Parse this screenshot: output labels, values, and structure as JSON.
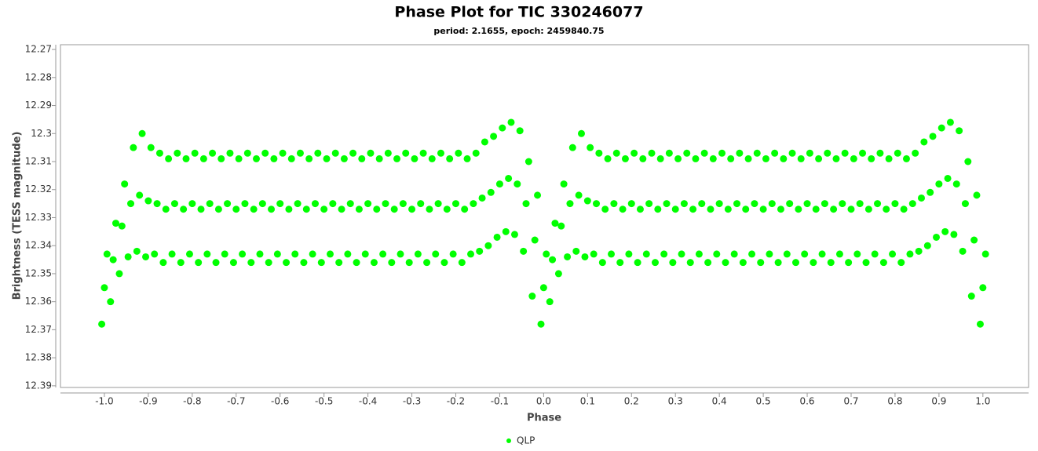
{
  "chart_data": {
    "type": "scatter",
    "title": "Phase Plot for TIC 330246077",
    "subtitle": "period: 2.1655, epoch: 2459840.75",
    "x_label": "Phase",
    "y_label": "Brightness (TESS magnitude)",
    "xlim": [
      -1.1,
      1.104
    ],
    "ylim": [
      12.3906,
      12.2683
    ],
    "xticks": [
      {
        "value": -1.0,
        "label": "-1.0"
      },
      -0.9,
      -0.8,
      -0.7,
      -0.6,
      -0.5,
      -0.4,
      -0.3,
      -0.2,
      -0.1,
      {
        "value": 0.0,
        "label": "0.0"
      },
      0.1,
      0.2,
      0.3,
      0.4,
      0.5,
      0.6,
      0.7,
      0.8,
      0.9,
      {
        "value": 1.0,
        "label": "1.0"
      }
    ],
    "yticks": [
      12.27,
      12.28,
      12.29,
      12.3,
      12.31,
      12.32,
      12.33,
      12.34,
      12.35,
      12.36,
      12.37,
      12.38,
      12.39
    ],
    "legend": "bottom",
    "series": [
      {
        "name": "QLP",
        "color": "#00ff00",
        "x": [
          -1,
          -0.994,
          -1.006,
          -0.98,
          -0.974,
          -0.986,
          -0.96,
          -0.954,
          -0.966,
          -0.94,
          -0.934,
          -0.946,
          -0.92,
          -0.914,
          -0.926,
          -0.9,
          -0.894,
          -0.906,
          -0.88,
          -0.874,
          -0.886,
          -0.86,
          -0.854,
          -0.866,
          -0.84,
          -0.834,
          -0.846,
          -0.82,
          -0.814,
          -0.826,
          -0.8,
          -0.794,
          -0.806,
          -0.78,
          -0.774,
          -0.786,
          -0.76,
          -0.754,
          -0.766,
          -0.74,
          -0.734,
          -0.746,
          -0.72,
          -0.714,
          -0.726,
          -0.7,
          -0.694,
          -0.706,
          -0.68,
          -0.674,
          -0.686,
          -0.66,
          -0.654,
          -0.666,
          -0.64,
          -0.634,
          -0.646,
          -0.62,
          -0.614,
          -0.626,
          -0.6,
          -0.594,
          -0.606,
          -0.58,
          -0.574,
          -0.586,
          -0.56,
          -0.554,
          -0.566,
          -0.54,
          -0.534,
          -0.546,
          -0.52,
          -0.514,
          -0.526,
          -0.5,
          -0.494,
          -0.506,
          -0.48,
          -0.474,
          -0.486,
          -0.46,
          -0.454,
          -0.466,
          -0.44,
          -0.434,
          -0.446,
          -0.42,
          -0.414,
          -0.426,
          -0.4,
          -0.394,
          -0.406,
          -0.38,
          -0.374,
          -0.386,
          -0.36,
          -0.354,
          -0.366,
          -0.34,
          -0.334,
          -0.346,
          -0.32,
          -0.314,
          -0.326,
          -0.3,
          -0.294,
          -0.306,
          -0.28,
          -0.274,
          -0.286,
          -0.26,
          -0.254,
          -0.266,
          -0.24,
          -0.234,
          -0.246,
          -0.22,
          -0.214,
          -0.226,
          -0.2,
          -0.194,
          -0.206,
          -0.18,
          -0.174,
          -0.186,
          -0.16,
          -0.154,
          -0.166,
          -0.14,
          -0.134,
          -0.146,
          -0.12,
          -0.114,
          -0.126,
          -0.1,
          -0.094,
          -0.106,
          -0.08,
          -0.074,
          -0.086,
          -0.06,
          -0.054,
          -0.066,
          -0.04,
          -0.034,
          -0.046,
          -0.02,
          -0.014,
          -0.026,
          0,
          0.006,
          -0.006,
          0.02,
          0.026,
          0.014,
          0.04,
          0.046,
          0.034,
          0.06,
          0.066,
          0.054,
          0.08,
          0.086,
          0.074,
          0.1,
          0.106,
          0.094,
          0.12,
          0.126,
          0.114,
          0.14,
          0.146,
          0.134,
          0.16,
          0.166,
          0.154,
          0.18,
          0.186,
          0.174,
          0.2,
          0.206,
          0.194,
          0.22,
          0.226,
          0.214,
          0.24,
          0.246,
          0.234,
          0.26,
          0.266,
          0.254,
          0.28,
          0.286,
          0.274,
          0.3,
          0.306,
          0.294,
          0.32,
          0.326,
          0.314,
          0.34,
          0.346,
          0.334,
          0.36,
          0.366,
          0.354,
          0.38,
          0.386,
          0.374,
          0.4,
          0.406,
          0.394,
          0.42,
          0.426,
          0.414,
          0.44,
          0.446,
          0.434,
          0.46,
          0.466,
          0.454,
          0.48,
          0.486,
          0.474,
          0.5,
          0.506,
          0.494,
          0.52,
          0.526,
          0.514,
          0.54,
          0.546,
          0.534,
          0.56,
          0.566,
          0.554,
          0.58,
          0.586,
          0.574,
          0.6,
          0.606,
          0.594,
          0.62,
          0.626,
          0.614,
          0.64,
          0.646,
          0.634,
          0.66,
          0.666,
          0.654,
          0.68,
          0.686,
          0.674,
          0.7,
          0.706,
          0.694,
          0.72,
          0.726,
          0.714,
          0.74,
          0.746,
          0.734,
          0.76,
          0.766,
          0.754,
          0.78,
          0.786,
          0.774,
          0.8,
          0.806,
          0.794,
          0.82,
          0.826,
          0.814,
          0.84,
          0.846,
          0.834,
          0.86,
          0.866,
          0.854,
          0.88,
          0.886,
          0.874,
          0.9,
          0.906,
          0.894,
          0.92,
          0.926,
          0.914,
          0.94,
          0.946,
          0.934,
          0.96,
          0.966,
          0.954,
          0.98,
          0.986,
          0.974,
          1,
          1.006,
          0.994
        ],
        "values": [
          12.355,
          12.343,
          12.368,
          12.345,
          12.332,
          12.36,
          12.333,
          12.318,
          12.35,
          12.325,
          12.305,
          12.344,
          12.322,
          12.3,
          12.342,
          12.324,
          12.305,
          12.344,
          12.325,
          12.307,
          12.343,
          12.327,
          12.309,
          12.346,
          12.325,
          12.307,
          12.343,
          12.327,
          12.309,
          12.346,
          12.325,
          12.307,
          12.343,
          12.327,
          12.309,
          12.346,
          12.325,
          12.307,
          12.343,
          12.327,
          12.309,
          12.346,
          12.325,
          12.307,
          12.343,
          12.327,
          12.309,
          12.346,
          12.325,
          12.307,
          12.343,
          12.327,
          12.309,
          12.346,
          12.325,
          12.307,
          12.343,
          12.327,
          12.309,
          12.346,
          12.325,
          12.307,
          12.343,
          12.327,
          12.309,
          12.346,
          12.325,
          12.307,
          12.343,
          12.327,
          12.309,
          12.346,
          12.325,
          12.307,
          12.343,
          12.327,
          12.309,
          12.346,
          12.325,
          12.307,
          12.343,
          12.327,
          12.309,
          12.346,
          12.325,
          12.307,
          12.343,
          12.327,
          12.309,
          12.346,
          12.325,
          12.307,
          12.343,
          12.327,
          12.309,
          12.346,
          12.325,
          12.307,
          12.343,
          12.327,
          12.309,
          12.346,
          12.325,
          12.307,
          12.343,
          12.327,
          12.309,
          12.346,
          12.325,
          12.307,
          12.343,
          12.327,
          12.309,
          12.346,
          12.325,
          12.307,
          12.343,
          12.327,
          12.309,
          12.346,
          12.325,
          12.307,
          12.343,
          12.327,
          12.309,
          12.346,
          12.325,
          12.307,
          12.343,
          12.323,
          12.303,
          12.342,
          12.321,
          12.301,
          12.34,
          12.318,
          12.298,
          12.337,
          12.316,
          12.296,
          12.335,
          12.318,
          12.299,
          12.336,
          12.325,
          12.31,
          12.342,
          12.338,
          12.322,
          12.358,
          12.355,
          12.343,
          12.368,
          12.345,
          12.332,
          12.36,
          12.333,
          12.318,
          12.35,
          12.325,
          12.305,
          12.344,
          12.322,
          12.3,
          12.342,
          12.324,
          12.305,
          12.344,
          12.325,
          12.307,
          12.343,
          12.327,
          12.309,
          12.346,
          12.325,
          12.307,
          12.343,
          12.327,
          12.309,
          12.346,
          12.325,
          12.307,
          12.343,
          12.327,
          12.309,
          12.346,
          12.325,
          12.307,
          12.343,
          12.327,
          12.309,
          12.346,
          12.325,
          12.307,
          12.343,
          12.327,
          12.309,
          12.346,
          12.325,
          12.307,
          12.343,
          12.327,
          12.309,
          12.346,
          12.325,
          12.307,
          12.343,
          12.327,
          12.309,
          12.346,
          12.325,
          12.307,
          12.343,
          12.327,
          12.309,
          12.346,
          12.325,
          12.307,
          12.343,
          12.327,
          12.309,
          12.346,
          12.325,
          12.307,
          12.343,
          12.327,
          12.309,
          12.346,
          12.325,
          12.307,
          12.343,
          12.327,
          12.309,
          12.346,
          12.325,
          12.307,
          12.343,
          12.327,
          12.309,
          12.346,
          12.325,
          12.307,
          12.343,
          12.327,
          12.309,
          12.346,
          12.325,
          12.307,
          12.343,
          12.327,
          12.309,
          12.346,
          12.325,
          12.307,
          12.343,
          12.327,
          12.309,
          12.346,
          12.325,
          12.307,
          12.343,
          12.327,
          12.309,
          12.346,
          12.325,
          12.307,
          12.343,
          12.327,
          12.309,
          12.346,
          12.325,
          12.307,
          12.343,
          12.327,
          12.309,
          12.346,
          12.325,
          12.307,
          12.343,
          12.323,
          12.303,
          12.342,
          12.321,
          12.301,
          12.34,
          12.318,
          12.298,
          12.337,
          12.316,
          12.296,
          12.335,
          12.318,
          12.299,
          12.336,
          12.325,
          12.31,
          12.342,
          12.338,
          12.322,
          12.358,
          12.355,
          12.343,
          12.368
        ]
      }
    ]
  }
}
